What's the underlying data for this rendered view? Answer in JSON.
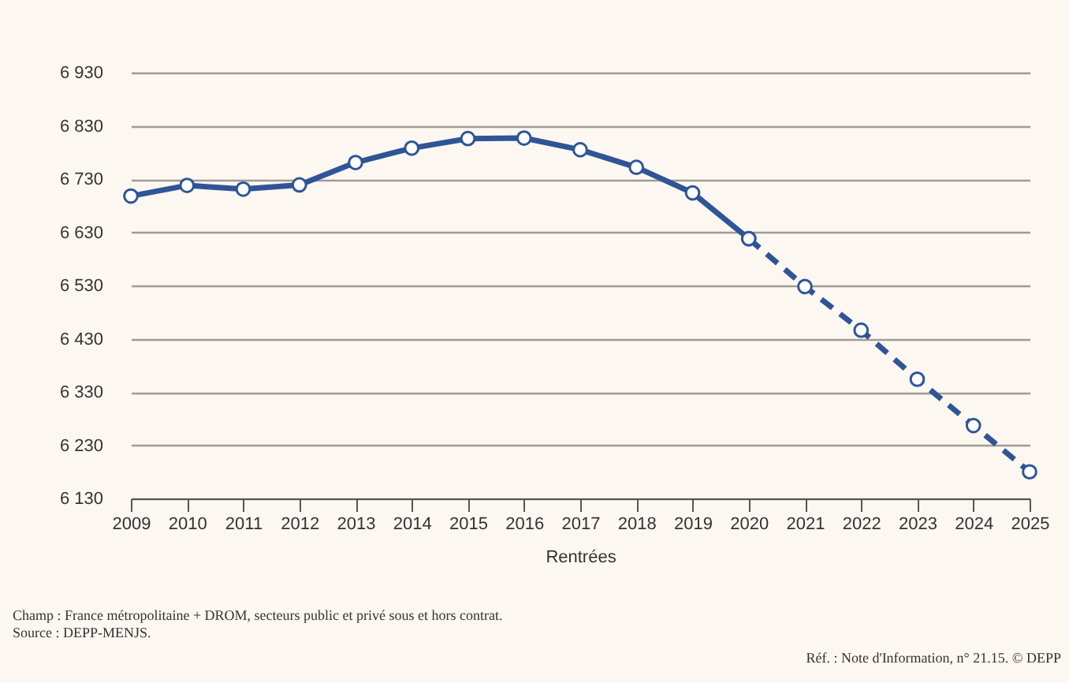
{
  "chart_data": {
    "type": "line",
    "xlabel": "Rentrées",
    "series": [
      {
        "color": "#2f5597",
        "line_style": "solid",
        "x": [
          2009,
          2010,
          2011,
          2012,
          2013,
          2014,
          2015,
          2016,
          2017,
          2018,
          2019,
          2020
        ],
        "values": [
          6698,
          6718,
          6711,
          6719,
          6761,
          6788,
          6806,
          6807,
          6785,
          6752,
          6704,
          6618
        ]
      },
      {
        "color": "#2f5597",
        "line_style": "dashed",
        "x": [
          2020,
          2021,
          2022,
          2023,
          2024,
          2025
        ],
        "values": [
          6618,
          6528,
          6446,
          6354,
          6267,
          6180
        ]
      }
    ],
    "xlim": [
      2009,
      2025
    ],
    "xticks": [
      2009,
      2010,
      2011,
      2012,
      2013,
      2014,
      2015,
      2016,
      2017,
      2018,
      2019,
      2020,
      2021,
      2022,
      2023,
      2024,
      2025
    ],
    "ylim": [
      6130,
      6930
    ],
    "yticks": [
      {
        "value": 6130,
        "label": "6 130"
      },
      {
        "value": 6230,
        "label": "6 230"
      },
      {
        "value": 6330,
        "label": "6 330"
      },
      {
        "value": 6430,
        "label": "6 430"
      },
      {
        "value": 6530,
        "label": "6 530"
      },
      {
        "value": 6630,
        "label": "6 630"
      },
      {
        "value": 6730,
        "label": "6 730"
      },
      {
        "value": 6830,
        "label": "6 830"
      },
      {
        "value": 6930,
        "label": "6 930"
      }
    ],
    "grid": "y",
    "marker": "circle",
    "annotations": [
      "Champ : France métropolitaine + DROM, secteurs public et privé sous et hors contrat.",
      "Source : DEPP-MENJS.",
      "Réf. : Note d'Information, n° 21.15. © DEPP"
    ]
  }
}
